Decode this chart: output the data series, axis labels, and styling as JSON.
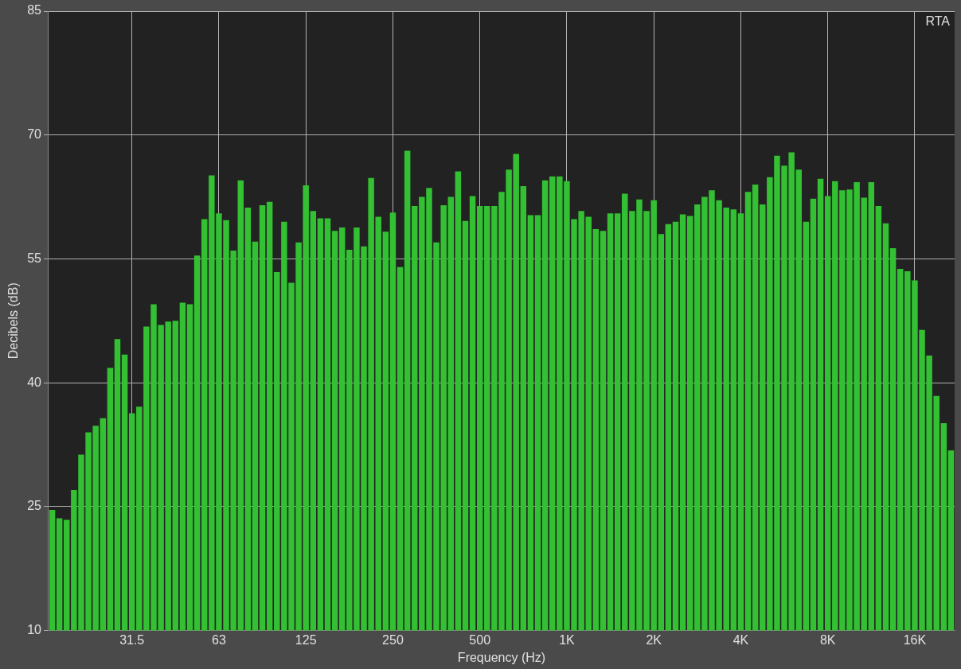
{
  "chart_data": {
    "type": "bar",
    "xlabel": "Frequency (Hz)",
    "ylabel": "Decibels (dB)",
    "annotations": [
      "RTA"
    ],
    "categories": [
      null,
      null,
      null,
      null,
      null,
      null,
      null,
      null,
      null,
      null,
      null,
      "31.5",
      null,
      null,
      null,
      null,
      null,
      null,
      null,
      null,
      null,
      null,
      null,
      "63",
      null,
      null,
      null,
      null,
      null,
      null,
      null,
      null,
      null,
      null,
      null,
      "125",
      null,
      null,
      null,
      null,
      null,
      null,
      null,
      null,
      null,
      null,
      null,
      "250",
      null,
      null,
      null,
      null,
      null,
      null,
      null,
      null,
      null,
      null,
      null,
      "500",
      null,
      null,
      null,
      null,
      null,
      null,
      null,
      null,
      null,
      null,
      null,
      "1K",
      null,
      null,
      null,
      null,
      null,
      null,
      null,
      null,
      null,
      null,
      null,
      "2K",
      null,
      null,
      null,
      null,
      null,
      null,
      null,
      null,
      null,
      null,
      null,
      "4K",
      null,
      null,
      null,
      null,
      null,
      null,
      null,
      null,
      null,
      null,
      null,
      "8K",
      null,
      null,
      null,
      null,
      null,
      null,
      null,
      null,
      null,
      null,
      null,
      "16K",
      null,
      null,
      null,
      null,
      null
    ],
    "values": [
      24.6,
      23.6,
      23.4,
      27.0,
      31.3,
      34.0,
      34.8,
      35.7,
      41.8,
      45.3,
      43.4,
      36.3,
      37.1,
      46.8,
      49.5,
      47.0,
      47.4,
      47.5,
      49.7,
      49.5,
      55.4,
      59.8,
      65.1,
      60.5,
      59.7,
      56.0,
      64.5,
      61.2,
      57.1,
      61.5,
      61.9,
      53.4,
      59.5,
      52.1,
      57.0,
      63.9,
      60.8,
      59.9,
      59.9,
      58.4,
      58.8,
      56.1,
      58.8,
      56.5,
      64.8,
      60.1,
      58.3,
      60.6,
      54.0,
      68.1,
      61.4,
      62.5,
      63.6,
      57.0,
      61.5,
      62.5,
      65.6,
      59.6,
      62.6,
      61.4,
      61.4,
      61.4,
      63.1,
      65.8,
      67.7,
      63.8,
      60.3,
      60.3,
      64.5,
      65.0,
      65.0,
      64.4,
      59.8,
      60.8,
      60.1,
      58.6,
      58.4,
      60.5,
      60.5,
      62.9,
      60.8,
      62.2,
      60.8,
      62.1,
      58.0,
      59.2,
      59.5,
      60.4,
      60.2,
      61.6,
      62.5,
      63.3,
      62.1,
      61.2,
      61.0,
      60.5,
      63.1,
      64.0,
      61.6,
      64.9,
      67.5,
      66.3,
      67.9,
      65.8,
      59.5,
      62.3,
      64.7,
      62.6,
      64.4,
      63.3,
      63.4,
      64.3,
      62.4,
      64.3,
      61.4,
      59.3,
      56.3,
      53.8,
      53.5,
      52.4,
      46.4,
      43.3,
      38.4,
      35.1,
      31.8
    ],
    "color": "#33c133",
    "ylim": [
      10,
      85
    ],
    "yticks": [
      10,
      25,
      40,
      55,
      70,
      85
    ],
    "grid": true
  }
}
